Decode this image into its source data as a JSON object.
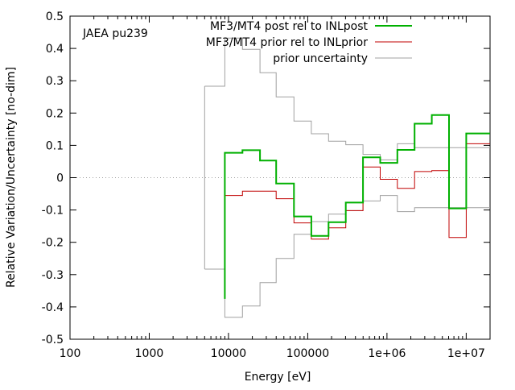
{
  "chart_data": {
    "type": "line",
    "annotation": "JAEA pu239",
    "xlabel": "Energy [eV]",
    "ylabel": "Relative Variation/Uncertainty [no-dim]",
    "xscale": "log",
    "xlim": [
      100,
      20000000
    ],
    "ylim": [
      -0.5,
      0.5
    ],
    "x_ticks": [
      {
        "v": 100,
        "label": "100"
      },
      {
        "v": 1000,
        "label": "1000"
      },
      {
        "v": 10000,
        "label": "10000"
      },
      {
        "v": 100000,
        "label": "100000"
      },
      {
        "v": 1000000,
        "label": "1e+06"
      },
      {
        "v": 10000000,
        "label": "1e+07"
      }
    ],
    "y_ticks": [
      {
        "v": -0.5,
        "label": "-0.5"
      },
      {
        "v": -0.4,
        "label": "-0.4"
      },
      {
        "v": -0.3,
        "label": "-0.3"
      },
      {
        "v": -0.2,
        "label": "-0.2"
      },
      {
        "v": -0.1,
        "label": "-0.1"
      },
      {
        "v": 0,
        "label": "0"
      },
      {
        "v": 0.1,
        "label": "0.1"
      },
      {
        "v": 0.2,
        "label": "0.2"
      },
      {
        "v": 0.3,
        "label": "0.3"
      },
      {
        "v": 0.4,
        "label": "0.4"
      },
      {
        "v": 0.5,
        "label": "0.5"
      }
    ],
    "legend_position": "top-right",
    "zero_line": {
      "style": "dotted",
      "color": "#a0a0a0"
    },
    "group_edges": [
      5000,
      9000,
      15000,
      25000,
      40000,
      67000,
      111000,
      183000,
      302000,
      498000,
      821000,
      1353000,
      2231000,
      3679000,
      6065000,
      10000000,
      20000000
    ],
    "series": [
      {
        "name": "MF3/MT4 post rel to INLpost",
        "color": "#00b000",
        "width": 2,
        "start_value": -0.375,
        "from_edge_index": 1,
        "values": [
          0.077,
          0.085,
          0.053,
          -0.018,
          -0.12,
          -0.18,
          -0.138,
          -0.077,
          0.063,
          0.046,
          0.086,
          0.167,
          0.194,
          -0.095,
          0.137
        ]
      },
      {
        "name": "MF3/MT4 prior rel to INLprior",
        "color": "#c00000",
        "width": 1,
        "start_value": -0.29,
        "from_edge_index": 1,
        "values": [
          -0.055,
          -0.042,
          -0.042,
          -0.065,
          -0.14,
          -0.19,
          -0.155,
          -0.102,
          0.033,
          -0.005,
          -0.033,
          0.019,
          0.022,
          -0.185,
          0.105
        ]
      },
      {
        "name": "prior uncertainty",
        "color": "#a0a0a0",
        "width": 1,
        "symmetric": true,
        "from_edge_index": 0,
        "values": [
          0.283,
          0.432,
          0.397,
          0.325,
          0.25,
          0.175,
          0.136,
          0.113,
          0.102,
          0.072,
          0.055,
          0.105,
          0.093,
          0.093,
          0.093,
          0.093
        ]
      }
    ]
  }
}
